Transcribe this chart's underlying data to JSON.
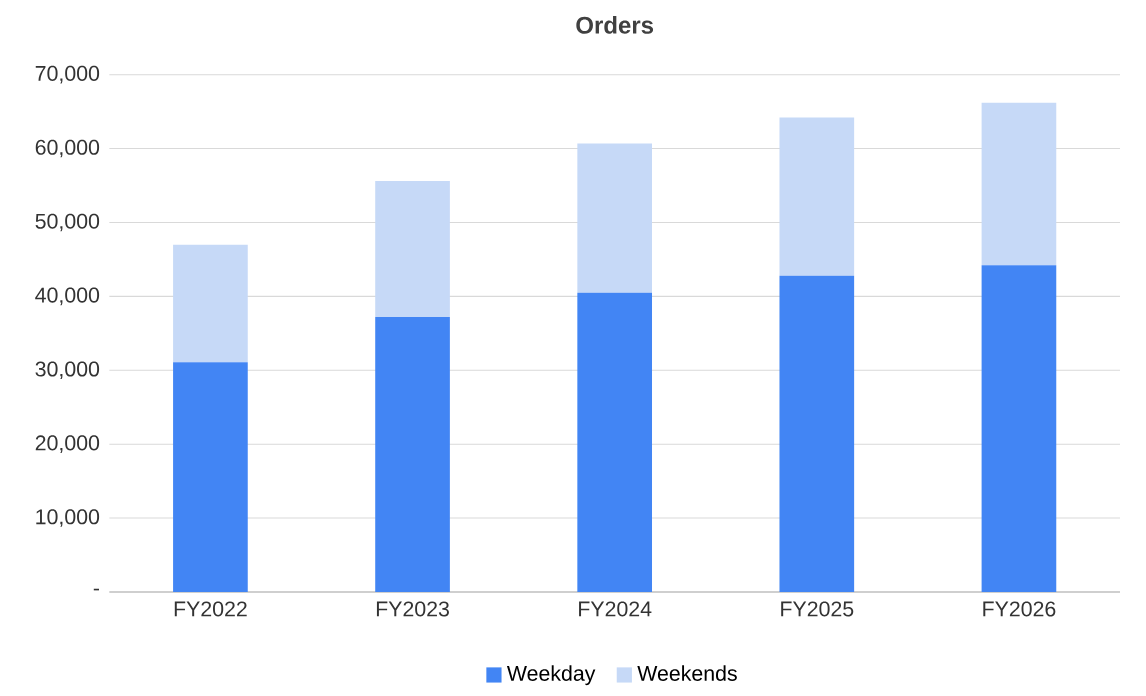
{
  "chart_data": {
    "type": "bar",
    "title": "Orders",
    "stacked": true,
    "categories": [
      "FY2022",
      "FY2023",
      "FY2024",
      "FY2025",
      "FY2026"
    ],
    "series": [
      {
        "name": "Weekday",
        "color": "#4285f4",
        "values": [
          31100,
          37200,
          40500,
          42800,
          44200
        ]
      },
      {
        "name": "Weekends",
        "color": "#c6d9f7",
        "values": [
          15900,
          18400,
          20200,
          21400,
          22000
        ]
      }
    ],
    "ylim": [
      0,
      70000
    ],
    "yticks": [
      {
        "value": 0,
        "label": "-"
      },
      {
        "value": 10000,
        "label": "10,000"
      },
      {
        "value": 20000,
        "label": "20,000"
      },
      {
        "value": 30000,
        "label": "30,000"
      },
      {
        "value": 40000,
        "label": "40,000"
      },
      {
        "value": 50000,
        "label": "50,000"
      },
      {
        "value": 60000,
        "label": "60,000"
      },
      {
        "value": 70000,
        "label": "70,000"
      }
    ],
    "grid": "y",
    "legend": "bottom"
  }
}
